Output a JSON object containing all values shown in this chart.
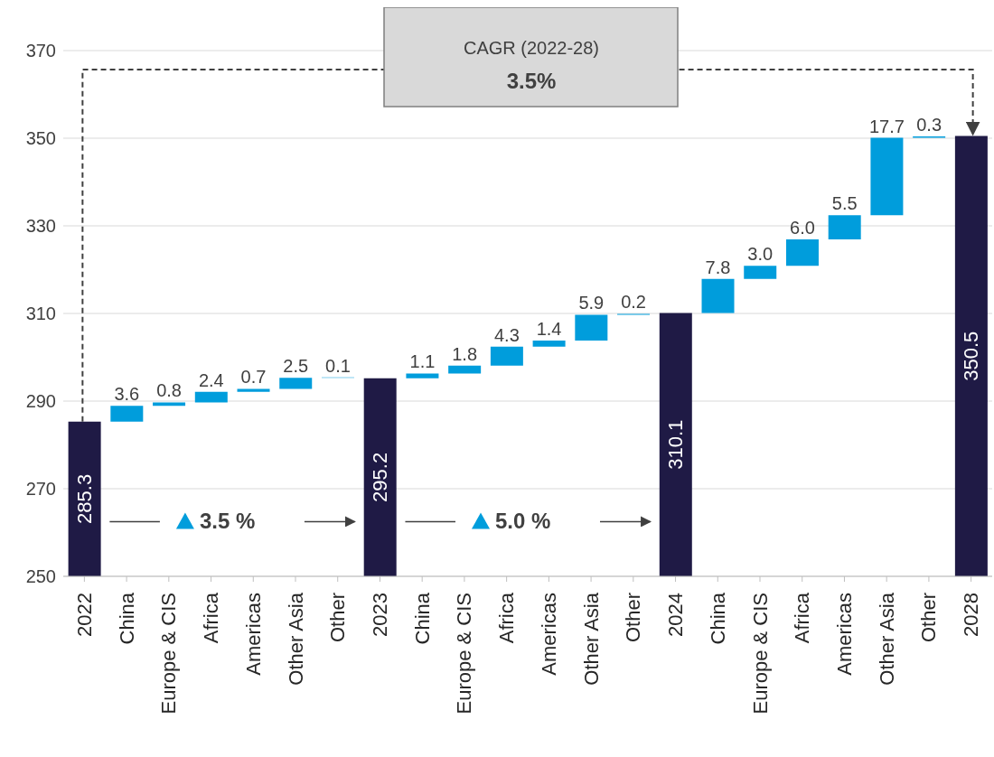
{
  "chart_data": {
    "type": "bar",
    "categories": [
      "2022",
      "China",
      "Europe & CIS",
      "Africa",
      "Americas",
      "Other Asia",
      "Other",
      "2023",
      "China",
      "Europe & CIS",
      "Africa",
      "Americas",
      "Other Asia",
      "Other",
      "2024",
      "China",
      "Europe & CIS",
      "Africa",
      "Americas",
      "Other Asia",
      "Other",
      "2028"
    ],
    "values": [
      285.3,
      3.6,
      0.8,
      2.4,
      0.7,
      2.5,
      0.1,
      295.2,
      1.1,
      1.8,
      4.3,
      1.4,
      5.9,
      0.2,
      310.1,
      7.8,
      3.0,
      6.0,
      5.5,
      17.7,
      0.3,
      350.5
    ],
    "base": [
      null,
      285.3,
      288.9,
      289.7,
      292.1,
      292.8,
      295.3,
      null,
      295.2,
      296.3,
      298.1,
      302.4,
      303.8,
      309.7,
      null,
      310.1,
      317.9,
      320.9,
      326.9,
      332.4,
      350.1,
      null
    ],
    "colors": [
      "#1f1a45",
      "#009ddc",
      "#009ddc",
      "#009ddc",
      "#009ddc",
      "#009ddc",
      "#009ddc",
      "#1f1a45",
      "#009ddc",
      "#009ddc",
      "#009ddc",
      "#009ddc",
      "#009ddc",
      "#009ddc",
      "#1f1a45",
      "#009ddc",
      "#009ddc",
      "#009ddc",
      "#009ddc",
      "#009ddc",
      "#009ddc",
      "#1f1a45"
    ],
    "value_labels": [
      "285.3",
      "3.6",
      "0.8",
      "2.4",
      "0.7",
      "2.5",
      "0.1",
      "295.2",
      "1.1",
      "1.8",
      "4.3",
      "1.4",
      "5.9",
      "0.2",
      "310.1",
      "7.8",
      "3.0",
      "6.0",
      "5.5",
      "17.7",
      "0.3",
      "350.5"
    ],
    "ylim": [
      250,
      370
    ],
    "yticks": [
      250,
      270,
      290,
      310,
      330,
      350,
      370
    ],
    "grid": "y",
    "annotations": [
      "CAGR (2022-28)",
      "3.5%",
      "3.5 %",
      "5.0 %"
    ]
  }
}
